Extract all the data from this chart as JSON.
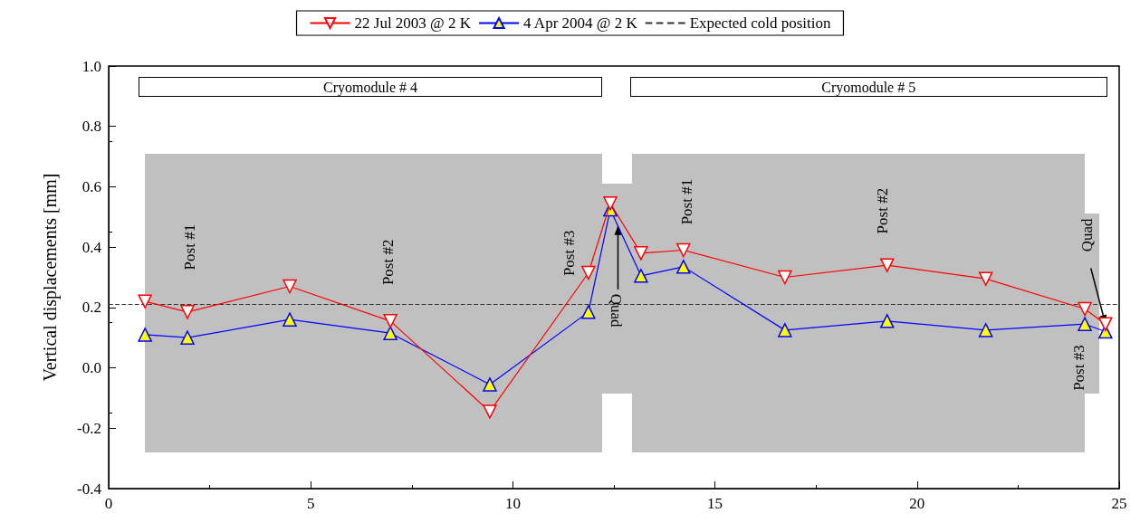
{
  "chart_data": {
    "type": "line",
    "ylabel": "Vertical displacements [mm]",
    "series": [
      {
        "name": "22 Jul 2003 @ 2 K",
        "color": "#ff0000",
        "x": [
          0.9,
          1.95,
          4.48,
          6.97,
          9.43,
          11.87,
          12.41,
          13.17,
          14.22,
          16.73,
          19.26,
          21.7,
          24.15,
          24.66
        ],
        "values": [
          0.22,
          0.185,
          0.27,
          0.155,
          -0.145,
          0.315,
          0.545,
          0.38,
          0.39,
          0.3,
          0.34,
          0.295,
          0.195,
          0.145
        ]
      },
      {
        "name": "4 Apr 2004 @ 2 K",
        "color": "#0000ff",
        "x": [
          0.9,
          1.95,
          4.48,
          6.97,
          9.43,
          11.87,
          12.41,
          13.17,
          14.22,
          16.73,
          19.26,
          21.7,
          24.15,
          24.66
        ],
        "values": [
          0.11,
          0.1,
          0.16,
          0.115,
          -0.055,
          0.185,
          0.525,
          0.305,
          0.335,
          0.125,
          0.155,
          0.125,
          0.145,
          0.12
        ]
      }
    ],
    "ref_lines": [
      {
        "axis": "y",
        "value": 0.21,
        "label": "Expected cold position",
        "color": "#333333",
        "line_style": "dashed"
      }
    ],
    "marker": "triangle",
    "line_style": "solid",
    "grid": false,
    "legend": "top",
    "xlim": [
      0,
      25
    ],
    "xticks": [
      0,
      5,
      10,
      15,
      20,
      25
    ],
    "ylim": [
      -0.4,
      1.0
    ],
    "yticks": [
      -0.4,
      -0.2,
      {
        "value": 0,
        "label": "0.0"
      },
      0.2,
      0.4,
      0.6,
      0.8,
      {
        "value": 1,
        "label": "1.0"
      }
    ],
    "annotations": [
      "Cryomodule # 4",
      "Cryomodule # 5",
      "Post #1",
      "Post #2",
      "Post #3",
      {
        "text": "Quad",
        "x": 12.6,
        "y": 0.47
      },
      "Post #1",
      "Post #2",
      {
        "text": "Quad",
        "x": 24.66,
        "y": 0.145
      },
      "Post #3"
    ]
  }
}
